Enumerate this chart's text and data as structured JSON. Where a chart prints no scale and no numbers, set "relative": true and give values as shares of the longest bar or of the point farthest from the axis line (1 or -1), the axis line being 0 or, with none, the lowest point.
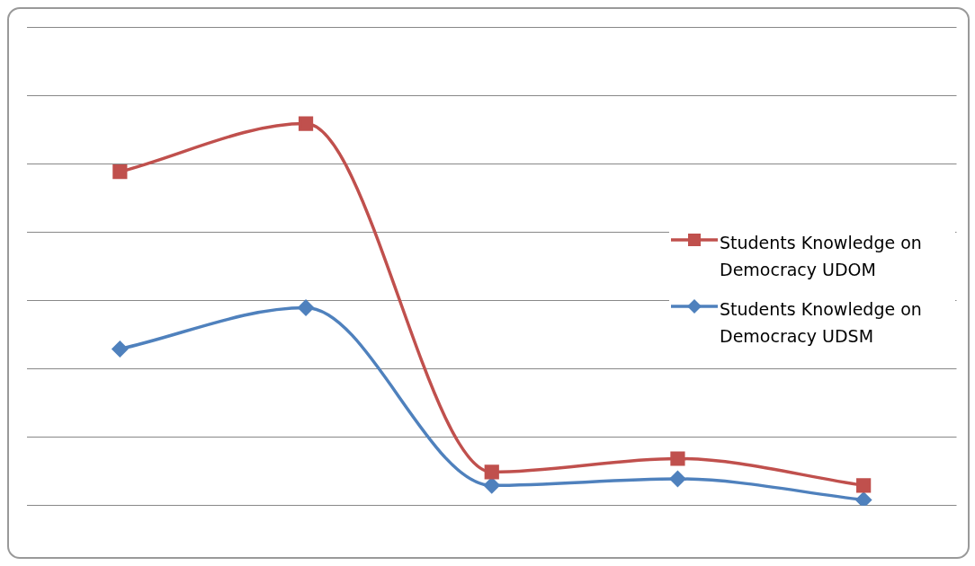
{
  "chart_data": {
    "type": "line",
    "relative": true,
    "categories": [
      null,
      null,
      null,
      null,
      null
    ],
    "series": [
      {
        "name": "Students Knowledge on Democracy UDOM",
        "color": "#c0504d",
        "marker": "square",
        "values": [
          0.874,
          1,
          0.088,
          0.123,
          0.053
        ]
      },
      {
        "name": "Students Knowledge on Democracy UDSM",
        "color": "#4f81bd",
        "marker": "diamond",
        "values": [
          0.41,
          0.518,
          0.053,
          0.07,
          0.015
        ]
      }
    ],
    "grid": "y",
    "legend": "right",
    "line_style": "solid"
  }
}
